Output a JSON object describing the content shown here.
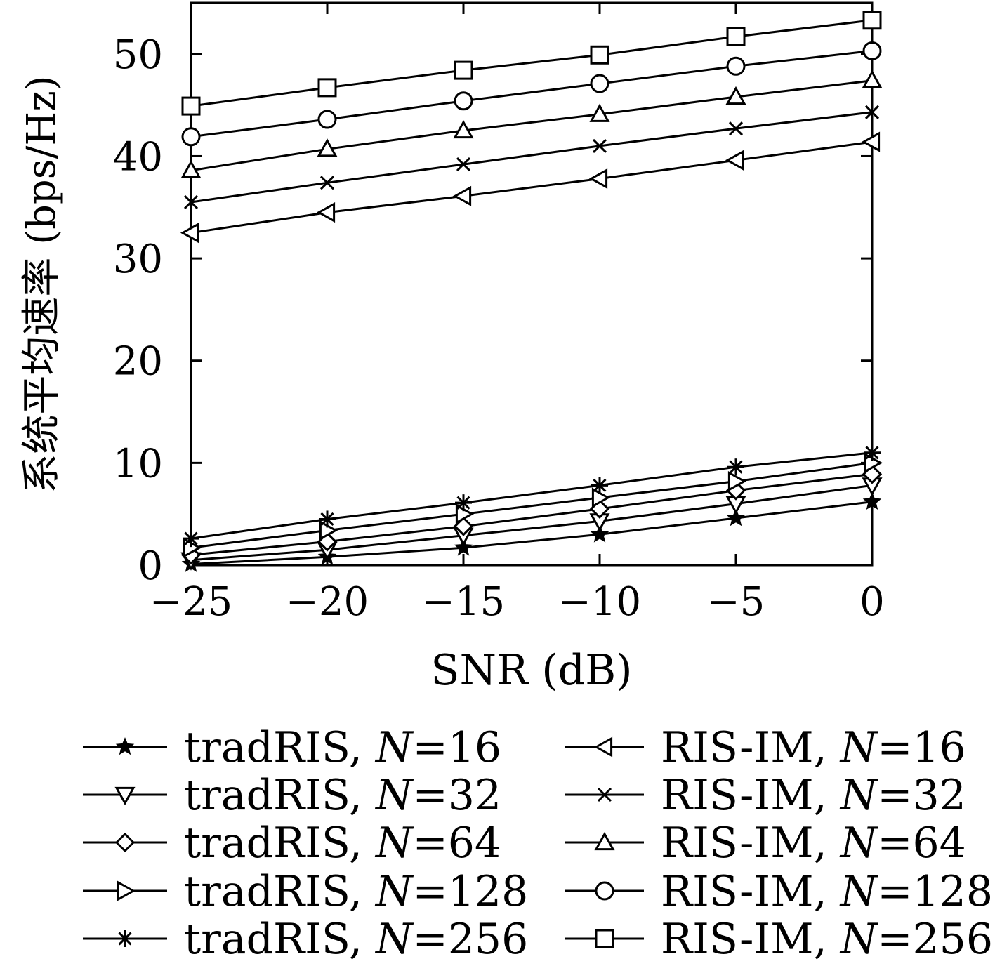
{
  "chart_data": {
    "type": "line",
    "xlabel": "SNR (dB)",
    "ylabel": "系统平均速率 (bps/Hz)",
    "xlim": [
      -25,
      0
    ],
    "ylim": [
      0,
      55
    ],
    "x": [
      -25,
      -20,
      -15,
      -10,
      -5,
      0
    ],
    "x_tick_labels": [
      "−25",
      "−20",
      "−15",
      "−10",
      "−5",
      "0"
    ],
    "y_ticks": [
      0,
      10,
      20,
      30,
      40,
      50
    ],
    "y_tick_labels": [
      "0",
      "10",
      "20",
      "30",
      "40",
      "50"
    ],
    "grid": false,
    "legend_placement": "bottom, two columns",
    "line_color": "#000000",
    "series": [
      {
        "label_prefix": "tradRIS, ",
        "label_var": "N",
        "label_eq": "=16",
        "marker": "star-filled",
        "values": [
          0.1,
          0.8,
          1.7,
          3.0,
          4.6,
          6.2
        ]
      },
      {
        "label_prefix": "tradRIS, ",
        "label_var": "N",
        "label_eq": "=32",
        "marker": "triangle-down",
        "values": [
          0.5,
          1.5,
          2.9,
          4.3,
          6.0,
          7.8
        ]
      },
      {
        "label_prefix": "tradRIS, ",
        "label_var": "N",
        "label_eq": "=64",
        "marker": "diamond",
        "values": [
          1.0,
          2.3,
          3.8,
          5.5,
          7.3,
          8.9
        ]
      },
      {
        "label_prefix": "tradRIS, ",
        "label_var": "N",
        "label_eq": "=128",
        "marker": "triangle-right",
        "values": [
          1.7,
          3.4,
          5.0,
          6.6,
          8.2,
          10.0
        ]
      },
      {
        "label_prefix": "tradRIS, ",
        "label_var": "N",
        "label_eq": "=256",
        "marker": "asterisk",
        "values": [
          2.6,
          4.5,
          6.1,
          7.8,
          9.6,
          11.0
        ]
      },
      {
        "label_prefix": "RIS-IM, ",
        "label_var": "N",
        "label_eq": "=16",
        "marker": "triangle-left",
        "values": [
          32.5,
          34.5,
          36.1,
          37.8,
          39.6,
          41.4
        ]
      },
      {
        "label_prefix": "RIS-IM, ",
        "label_var": "N",
        "label_eq": "=32",
        "marker": "x",
        "values": [
          35.5,
          37.4,
          39.2,
          41.0,
          42.7,
          44.3
        ]
      },
      {
        "label_prefix": "RIS-IM, ",
        "label_var": "N",
        "label_eq": "=64",
        "marker": "triangle-up",
        "values": [
          38.6,
          40.7,
          42.5,
          44.1,
          45.8,
          47.4
        ]
      },
      {
        "label_prefix": "RIS-IM, ",
        "label_var": "N",
        "label_eq": "=128",
        "marker": "circle",
        "values": [
          41.9,
          43.6,
          45.4,
          47.1,
          48.8,
          50.3
        ]
      },
      {
        "label_prefix": "RIS-IM, ",
        "label_var": "N",
        "label_eq": "=256",
        "marker": "square",
        "values": [
          44.9,
          46.7,
          48.4,
          49.9,
          51.7,
          53.3
        ]
      }
    ]
  }
}
